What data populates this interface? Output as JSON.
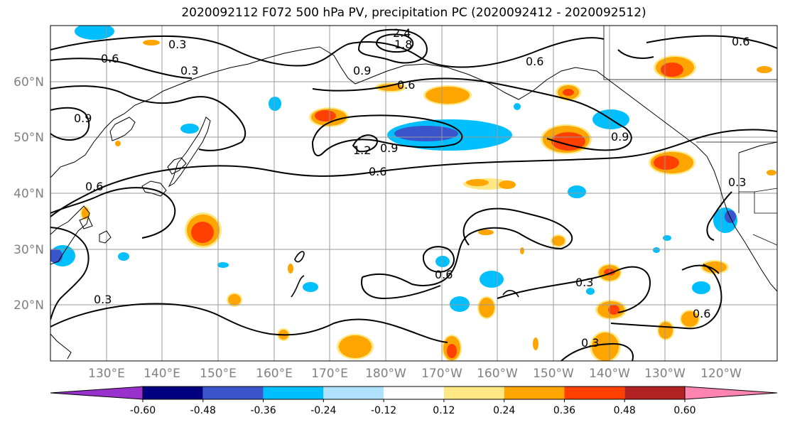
{
  "title": "2020092112 F072 500 hPa PV, precipitation PC (2020092412 - 2020092512)",
  "lat_labels": [
    "60°N",
    "50°N",
    "40°N",
    "30°N",
    "20°N"
  ],
  "lon_labels": [
    "130°E",
    "140°E",
    "150°E",
    "160°E",
    "170°E",
    "180°W",
    "170°W",
    "160°W",
    "150°W",
    "140°W",
    "130°W",
    "120°W"
  ],
  "colorbar": {
    "ticks": [
      "-0.60",
      "-0.48",
      "-0.36",
      "-0.24",
      "-0.12",
      "0.12",
      "0.24",
      "0.36",
      "0.48",
      "0.60"
    ],
    "colors": [
      "#9932cc",
      "#000080",
      "#3a55cc",
      "#00bfff",
      "#b0e2ff",
      "#ffffff",
      "#ffe883",
      "#ffa500",
      "#ff4000",
      "#b22222",
      "#ff85b0"
    ]
  },
  "contour_labels": [
    "0.3",
    "0.6",
    "0.3",
    "0.9",
    "0.6",
    "0.6",
    "1.8",
    "2.4",
    "0.9",
    "0.6",
    "1.2",
    "0.9",
    "0.6",
    "0.9",
    "0.6",
    "0.3",
    "0.3",
    "0.6",
    "0.3",
    "0.6",
    "0.3"
  ]
}
